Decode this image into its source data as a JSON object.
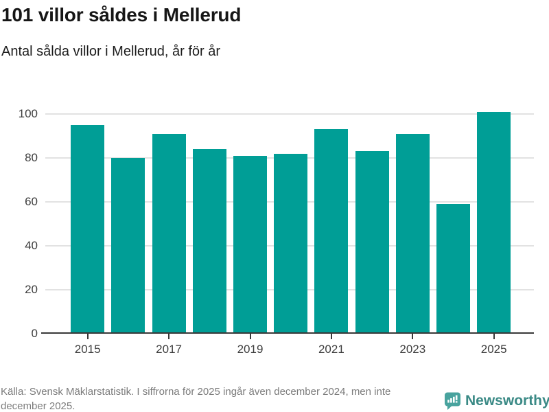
{
  "title": "101 villor såldes i Mellerud",
  "subtitle": "Antal sålda villor i Mellerud, år för år",
  "footer": {
    "source_text": "Källa: Svensk Mäklarstatistik. I siffrorna för 2025 ingår även december 2024, men inte december 2025.",
    "brand": "Newsworthy"
  },
  "colors": {
    "bar": "#009e96",
    "grid": "#e2e2e2",
    "axis": "#383838",
    "title_text": "#161616",
    "muted_text": "#7b7b7b",
    "brand_teal": "#3b8a86",
    "brand_icon_teal": "#48a39e"
  },
  "icons": {
    "brand_logo": "newsworthy-speech-bubble-bar-chart-icon"
  },
  "chart_data": {
    "type": "bar",
    "title": "101 villor såldes i Mellerud",
    "subtitle": "Antal sålda villor i Mellerud, år för år",
    "categories": [
      2015,
      2016,
      2017,
      2018,
      2019,
      2020,
      2021,
      2022,
      2023,
      2024,
      2025
    ],
    "values": [
      95,
      80,
      91,
      84,
      81,
      82,
      93,
      83,
      91,
      59,
      101
    ],
    "xlabel": "",
    "ylabel": "",
    "ylim": [
      0,
      100
    ],
    "yticks": [
      0,
      20,
      40,
      60,
      80,
      100
    ],
    "xtick_labels": [
      "2015",
      "2017",
      "2019",
      "2021",
      "2023",
      "2025"
    ],
    "grid": true,
    "legend": false,
    "bar_color": "#009e96"
  }
}
